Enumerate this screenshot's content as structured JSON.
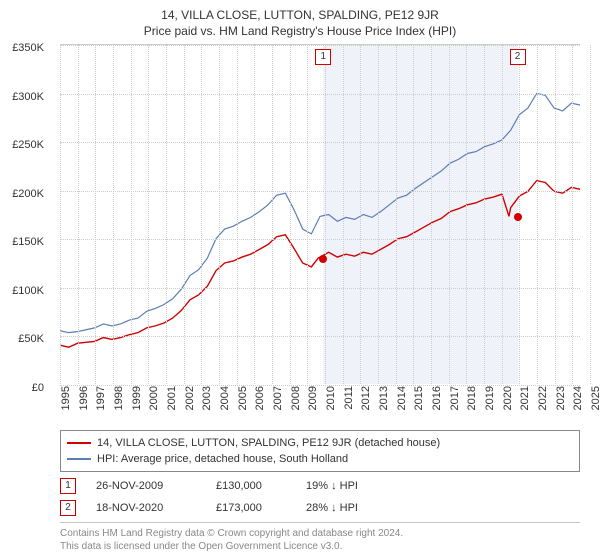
{
  "title": "14, VILLA CLOSE, LUTTON, SPALDING, PE12 9JR",
  "subtitle": "Price paid vs. HM Land Registry's House Price Index (HPI)",
  "chart": {
    "type": "line",
    "background_color": "#ffffff",
    "grid_color": "#cccccc",
    "highlight_band_color": "#e8edf5",
    "text_color": "#333333",
    "font_size": 11,
    "title_fontsize": 12,
    "x_years": [
      1995,
      1996,
      1997,
      1998,
      1999,
      2000,
      2001,
      2002,
      2003,
      2004,
      2005,
      2006,
      2007,
      2008,
      2009,
      2010,
      2011,
      2012,
      2013,
      2014,
      2015,
      2016,
      2017,
      2018,
      2019,
      2020,
      2021,
      2022,
      2023,
      2024,
      2025
    ],
    "ylim": [
      0,
      350000
    ],
    "ytick_step": 50000,
    "y_ticks": [
      {
        "v": 0,
        "label": "£0"
      },
      {
        "v": 50000,
        "label": "£50K"
      },
      {
        "v": 100000,
        "label": "£100K"
      },
      {
        "v": 150000,
        "label": "£150K"
      },
      {
        "v": 200000,
        "label": "£200K"
      },
      {
        "v": 250000,
        "label": "£250K"
      },
      {
        "v": 300000,
        "label": "£300K"
      },
      {
        "v": 350000,
        "label": "£350K"
      }
    ],
    "highlight_band": {
      "start_year": 2009.9,
      "end_year": 2020.9
    },
    "series": [
      {
        "id": "hpi",
        "label": "HPI: Average price, detached house, South Holland",
        "color": "#5b7db5",
        "line_width": 1.2,
        "data": [
          [
            1995,
            55000
          ],
          [
            1995.5,
            53000
          ],
          [
            1996,
            54000
          ],
          [
            1996.5,
            56000
          ],
          [
            1997,
            58000
          ],
          [
            1997.5,
            62000
          ],
          [
            1998,
            60000
          ],
          [
            1998.5,
            62000
          ],
          [
            1999,
            66000
          ],
          [
            1999.5,
            68000
          ],
          [
            2000,
            75000
          ],
          [
            2000.5,
            78000
          ],
          [
            2001,
            82000
          ],
          [
            2001.5,
            88000
          ],
          [
            2002,
            98000
          ],
          [
            2002.5,
            112000
          ],
          [
            2003,
            118000
          ],
          [
            2003.5,
            130000
          ],
          [
            2004,
            150000
          ],
          [
            2004.5,
            160000
          ],
          [
            2005,
            163000
          ],
          [
            2005.5,
            168000
          ],
          [
            2006,
            172000
          ],
          [
            2006.5,
            178000
          ],
          [
            2007,
            185000
          ],
          [
            2007.5,
            195000
          ],
          [
            2008,
            197000
          ],
          [
            2008.5,
            180000
          ],
          [
            2009,
            160000
          ],
          [
            2009.5,
            155000
          ],
          [
            2010,
            173000
          ],
          [
            2010.5,
            175000
          ],
          [
            2011,
            168000
          ],
          [
            2011.5,
            172000
          ],
          [
            2012,
            170000
          ],
          [
            2012.5,
            175000
          ],
          [
            2013,
            172000
          ],
          [
            2013.5,
            178000
          ],
          [
            2014,
            185000
          ],
          [
            2014.5,
            192000
          ],
          [
            2015,
            195000
          ],
          [
            2015.5,
            202000
          ],
          [
            2016,
            208000
          ],
          [
            2016.5,
            214000
          ],
          [
            2017,
            220000
          ],
          [
            2017.5,
            228000
          ],
          [
            2018,
            232000
          ],
          [
            2018.5,
            238000
          ],
          [
            2019,
            240000
          ],
          [
            2019.5,
            245000
          ],
          [
            2020,
            248000
          ],
          [
            2020.5,
            252000
          ],
          [
            2021,
            262000
          ],
          [
            2021.5,
            278000
          ],
          [
            2022,
            285000
          ],
          [
            2022.5,
            300000
          ],
          [
            2023,
            298000
          ],
          [
            2023.5,
            285000
          ],
          [
            2024,
            282000
          ],
          [
            2024.5,
            290000
          ],
          [
            2025,
            288000
          ]
        ]
      },
      {
        "id": "price_paid",
        "label": "14, VILLA CLOSE, LUTTON, SPALDING, PE12 9JR (detached house)",
        "color": "#d00000",
        "line_width": 1.4,
        "data": [
          [
            1995,
            40000
          ],
          [
            1995.5,
            38000
          ],
          [
            1996,
            42000
          ],
          [
            1996.5,
            43000
          ],
          [
            1997,
            44000
          ],
          [
            1997.5,
            48000
          ],
          [
            1998,
            46000
          ],
          [
            1998.5,
            48000
          ],
          [
            1999,
            51000
          ],
          [
            1999.5,
            53000
          ],
          [
            2000,
            58000
          ],
          [
            2000.5,
            60000
          ],
          [
            2001,
            63000
          ],
          [
            2001.5,
            68000
          ],
          [
            2002,
            76000
          ],
          [
            2002.5,
            87000
          ],
          [
            2003,
            92000
          ],
          [
            2003.5,
            101000
          ],
          [
            2004,
            117000
          ],
          [
            2004.5,
            125000
          ],
          [
            2005,
            127000
          ],
          [
            2005.5,
            131000
          ],
          [
            2006,
            134000
          ],
          [
            2006.5,
            139000
          ],
          [
            2007,
            144000
          ],
          [
            2007.5,
            152000
          ],
          [
            2008,
            154000
          ],
          [
            2008.5,
            140000
          ],
          [
            2009,
            125000
          ],
          [
            2009.5,
            121000
          ],
          [
            2009.9,
            130000
          ],
          [
            2010.5,
            136000
          ],
          [
            2011,
            131000
          ],
          [
            2011.5,
            134000
          ],
          [
            2012,
            132000
          ],
          [
            2012.5,
            136000
          ],
          [
            2013,
            134000
          ],
          [
            2013.5,
            139000
          ],
          [
            2014,
            144000
          ],
          [
            2014.5,
            150000
          ],
          [
            2015,
            152000
          ],
          [
            2015.5,
            157000
          ],
          [
            2016,
            162000
          ],
          [
            2016.5,
            167000
          ],
          [
            2017,
            171000
          ],
          [
            2017.5,
            178000
          ],
          [
            2018,
            181000
          ],
          [
            2018.5,
            185000
          ],
          [
            2019,
            187000
          ],
          [
            2019.5,
            191000
          ],
          [
            2020,
            193000
          ],
          [
            2020.5,
            196000
          ],
          [
            2020.9,
            173000
          ],
          [
            2021,
            182000
          ],
          [
            2021.5,
            194000
          ],
          [
            2022,
            199000
          ],
          [
            2022.5,
            210000
          ],
          [
            2023,
            208000
          ],
          [
            2023.5,
            199000
          ],
          [
            2024,
            197000
          ],
          [
            2024.5,
            203000
          ],
          [
            2025,
            201000
          ]
        ]
      }
    ],
    "markers": [
      {
        "n": "1",
        "year": 2009.9,
        "price": 130000
      },
      {
        "n": "2",
        "year": 2020.9,
        "price": 173000
      }
    ]
  },
  "legend": {
    "border_color": "#888888",
    "items": [
      {
        "color": "#d00000",
        "label": "14, VILLA CLOSE, LUTTON, SPALDING, PE12 9JR (detached house)"
      },
      {
        "color": "#5b7db5",
        "label": "HPI: Average price, detached house, South Holland"
      }
    ]
  },
  "events": [
    {
      "n": "1",
      "date": "26-NOV-2009",
      "price": "£130,000",
      "delta": "19% ↓ HPI"
    },
    {
      "n": "2",
      "date": "18-NOV-2020",
      "price": "£173,000",
      "delta": "28% ↓ HPI"
    }
  ],
  "footer": {
    "line1": "Contains HM Land Registry data © Crown copyright and database right 2024.",
    "line2": "This data is licensed under the Open Government Licence v3.0."
  }
}
